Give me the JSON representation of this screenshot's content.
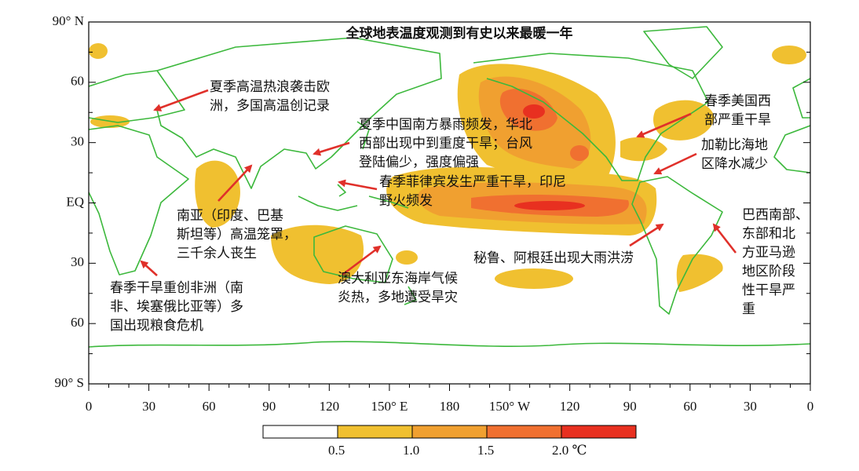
{
  "title": "全球地表温度观测到有史以来最暖一年",
  "y_axis": {
    "labels": [
      "90° N",
      "60",
      "30",
      "EQ",
      "30",
      "60",
      "90° S"
    ]
  },
  "x_axis": {
    "labels": [
      "0",
      "30",
      "60",
      "90",
      "120",
      "150° E",
      "180",
      "150° W",
      "120",
      "90",
      "60",
      "30",
      "0"
    ]
  },
  "annotations": [
    {
      "lines": [
        "夏季高温热浪袭击欧",
        "洲，多国高温创记录"
      ]
    },
    {
      "lines": [
        "夏季中国南方暴雨频发，华北",
        "西部出现中到重度干旱；台风",
        "登陆偏少，强度偏强"
      ]
    },
    {
      "lines": [
        "春季菲律宾发生严重干旱，印尼",
        "野火频发"
      ]
    },
    {
      "lines": [
        "南亚（印度、巴基",
        "斯坦等）高温笼罩，",
        "三千余人丧生"
      ]
    },
    {
      "lines": [
        "春季干旱重创非洲（南",
        "非、埃塞俄比亚等）多",
        "国出现粮食危机"
      ]
    },
    {
      "lines": [
        "澳大利亚东海岸气候",
        "炎热，多地遭受旱灾"
      ]
    },
    {
      "lines": [
        "秘鲁、阿根廷出现大雨洪涝"
      ]
    },
    {
      "lines": [
        "春季美国西",
        "部严重干旱"
      ]
    },
    {
      "lines": [
        "加勒比海地",
        "区降水减少"
      ]
    },
    {
      "lines": [
        "巴西南部、",
        "东部和北",
        "方亚马逊",
        "地区阶段",
        "性干旱严",
        "重"
      ]
    }
  ],
  "colorbar": {
    "labels": [
      "0.5",
      "1.0",
      "1.5",
      "2.0 ℃"
    ]
  }
}
